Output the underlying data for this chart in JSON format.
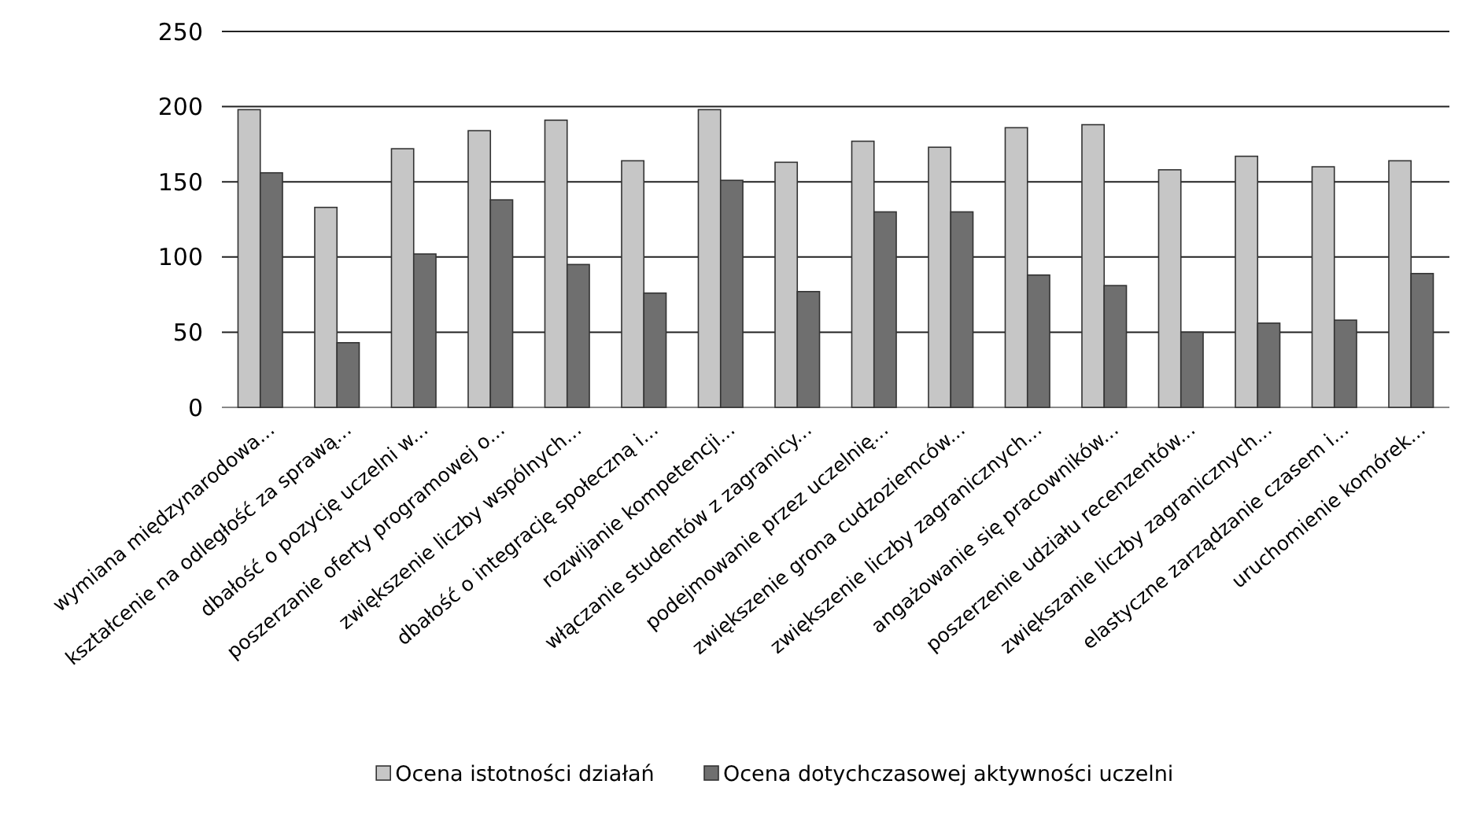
{
  "chart_data": {
    "type": "bar",
    "categories": [
      "wymiana międzynarodowa...",
      "kształcenie na odległość za sprawą...",
      "dbałość o pozycję uczelni w...",
      "poszerzanie oferty programowej o...",
      "zwiększenie liczby wspólnych...",
      "dbałość o  integrację społeczną i...",
      "rozwijanie kompetencji...",
      "włączanie studentów z zagranicy...",
      "podejmowanie przez uczelnię...",
      "zwiększenie grona cudzoziemców...",
      "zwiększenie liczby zagranicznych...",
      "angażowanie się pracowników...",
      "poszerzenie udziału recenzentów...",
      "zwiększanie liczby zagranicznych...",
      "elastyczne zarządzanie czasem i...",
      "uruchomienie komórek..."
    ],
    "series": [
      {
        "name": "Ocena istotności działań",
        "color": "#c6c6c6",
        "values": [
          198,
          133,
          172,
          184,
          191,
          164,
          198,
          163,
          177,
          173,
          186,
          188,
          158,
          167,
          160,
          164
        ]
      },
      {
        "name": "Ocena dotychczasowej aktywności uczelni",
        "color": "#6f6f6f",
        "values": [
          156,
          43,
          102,
          138,
          95,
          76,
          151,
          77,
          130,
          130,
          88,
          81,
          50,
          56,
          58,
          89
        ]
      }
    ],
    "ylim": [
      0,
      250
    ],
    "yticks": [
      0,
      50,
      100,
      150,
      200,
      250
    ],
    "grid": "y",
    "legend": "bottom"
  }
}
